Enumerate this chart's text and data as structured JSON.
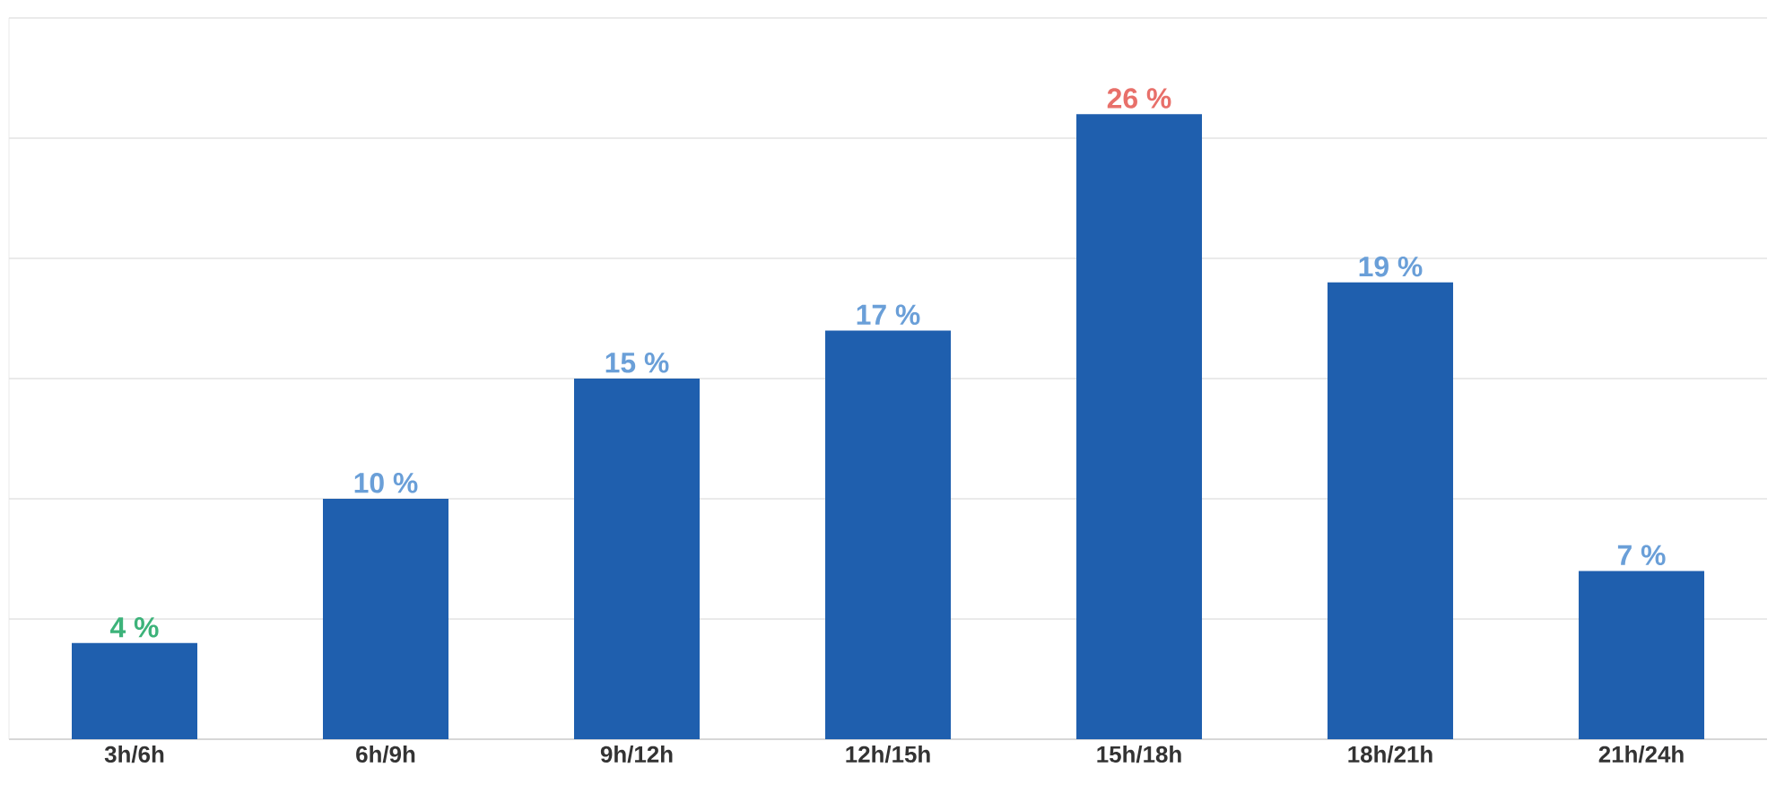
{
  "chart_data": {
    "type": "bar",
    "categories": [
      "3h/6h",
      "6h/9h",
      "9h/12h",
      "12h/15h",
      "15h/18h",
      "18h/21h",
      "21h/24h"
    ],
    "values": [
      4,
      10,
      15,
      17,
      26,
      19,
      7
    ],
    "value_labels": [
      "4 %",
      "10 %",
      "15 %",
      "17 %",
      "26 %",
      "19 %",
      "7 %"
    ],
    "color": "#1f5fae",
    "ylim": [
      0,
      30
    ],
    "yticks": [
      {
        "value": 0,
        "label": null
      },
      {
        "value": 5,
        "label": null
      },
      {
        "value": 10,
        "label": null
      },
      {
        "value": 15,
        "label": null
      },
      {
        "value": 20,
        "label": null
      },
      {
        "value": 25,
        "label": null
      },
      {
        "value": 30,
        "label": null
      }
    ],
    "tick_labels": "x",
    "grid": "y"
  }
}
